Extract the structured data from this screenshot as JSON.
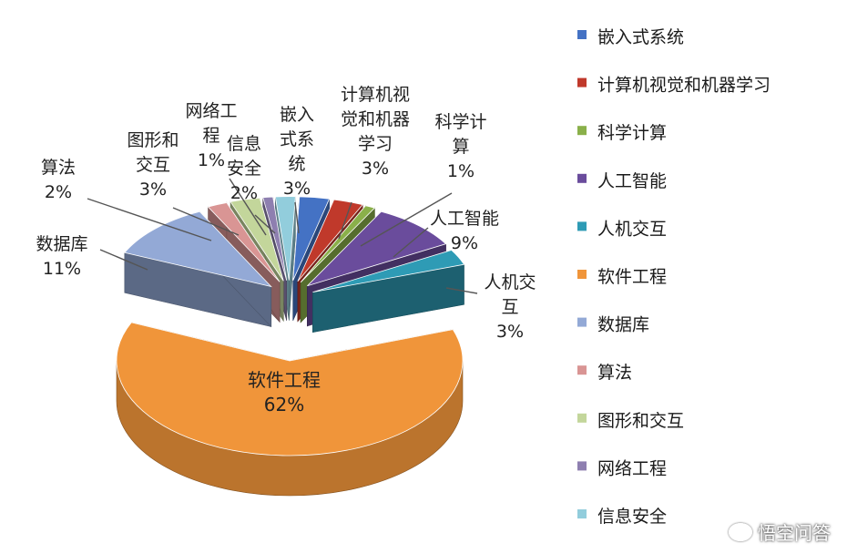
{
  "chart_data": {
    "type": "pie",
    "three_d": true,
    "legend_position": "right",
    "slices": [
      {
        "name": "嵌入式系统",
        "value": 3,
        "color": "#4472C4",
        "label_lines": [
          "嵌入",
          "式系",
          "统",
          "3%"
        ]
      },
      {
        "name": "计算机视觉和机器学习",
        "value": 3,
        "color": "#C0392B",
        "label_lines": [
          "计算机视",
          "觉和机器",
          "学习",
          "3%"
        ]
      },
      {
        "name": "科学计算",
        "value": 1,
        "color": "#8AB04A",
        "label_lines": [
          "科学计",
          "算",
          "1%"
        ]
      },
      {
        "name": "人工智能",
        "value": 9,
        "color": "#6A4C9C",
        "label_lines": [
          "人工智能",
          "9%"
        ]
      },
      {
        "name": "人机交互",
        "value": 3,
        "color": "#2E9BB5",
        "label_lines": [
          "人机交",
          "互",
          "3%"
        ]
      },
      {
        "name": "软件工程",
        "value": 62,
        "color": "#F0953A",
        "label_lines": [
          "软件工程",
          "62%"
        ]
      },
      {
        "name": "数据库",
        "value": 11,
        "color": "#93A9D6",
        "label_lines": [
          "数据库",
          "11%"
        ]
      },
      {
        "name": "算法",
        "value": 2,
        "color": "#D99594",
        "label_lines": [
          "算法",
          "2%"
        ]
      },
      {
        "name": "图形和交互",
        "value": 3,
        "color": "#C3D69B",
        "label_lines": [
          "图形和",
          "交互",
          "3%"
        ]
      },
      {
        "name": "网络工程",
        "value": 1,
        "color": "#8E7FB0",
        "label_lines": [
          "网络工",
          "程",
          "1%"
        ]
      },
      {
        "name": "信息安全",
        "value": 2,
        "color": "#92CDDC",
        "label_lines": [
          "信息",
          "安全",
          "2%"
        ]
      }
    ]
  },
  "watermark": {
    "text": "悟空问答",
    "icon": "chat-bubble-icon"
  }
}
